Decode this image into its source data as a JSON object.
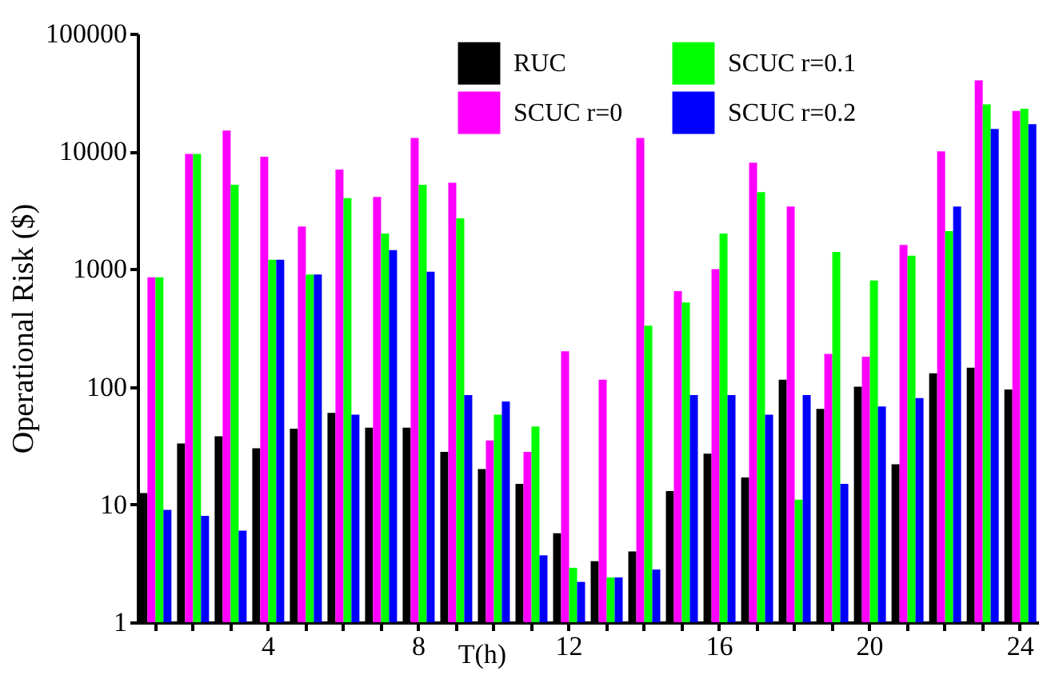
{
  "chart_data": {
    "type": "bar",
    "xlabel": "T(h)",
    "ylabel": "Operational Risk ($)",
    "categories": [
      null,
      null,
      null,
      "4",
      null,
      null,
      null,
      "8",
      null,
      null,
      null,
      "12",
      null,
      null,
      null,
      "16",
      null,
      null,
      null,
      "20",
      null,
      null,
      null,
      "24"
    ],
    "series": [
      {
        "name": "RUC",
        "color": "#000000",
        "values": [
          12.5,
          33,
          38,
          30,
          44,
          60,
          45,
          45,
          28,
          20,
          15,
          5.7,
          3.3,
          4,
          13,
          27,
          17,
          115,
          65,
          100,
          22,
          130,
          145,
          95
        ]
      },
      {
        "name": "SCUC r=0",
        "color": "#ff00ff",
        "values": [
          850,
          9500,
          15000,
          9000,
          2300,
          7000,
          4100,
          13000,
          5400,
          35,
          28,
          200,
          115,
          13000,
          650,
          1000,
          8000,
          3400,
          190,
          180,
          1600,
          10000,
          40000,
          22000
        ]
      },
      {
        "name": "SCUC r=0.1",
        "color": "#00ff00",
        "values": [
          850,
          9500,
          5200,
          1200,
          900,
          4000,
          2000,
          5200,
          2700,
          58,
          46,
          2.9,
          2.4,
          330,
          520,
          2000,
          4500,
          11,
          1400,
          800,
          1300,
          2100,
          25000,
          23000
        ]
      },
      {
        "name": "SCUC r=0.2",
        "color": "#0000ff",
        "values": [
          9,
          8,
          6,
          1200,
          900,
          58,
          1450,
          950,
          85,
          75,
          3.7,
          2.2,
          2.4,
          2.8,
          85,
          85,
          58,
          85,
          15,
          68,
          80,
          3400,
          15500,
          17000
        ]
      }
    ],
    "log": true,
    "ylim": [
      1,
      100000
    ],
    "yticks": [
      1,
      10,
      100,
      1000,
      10000,
      100000
    ],
    "grid": false,
    "legend": "top"
  }
}
